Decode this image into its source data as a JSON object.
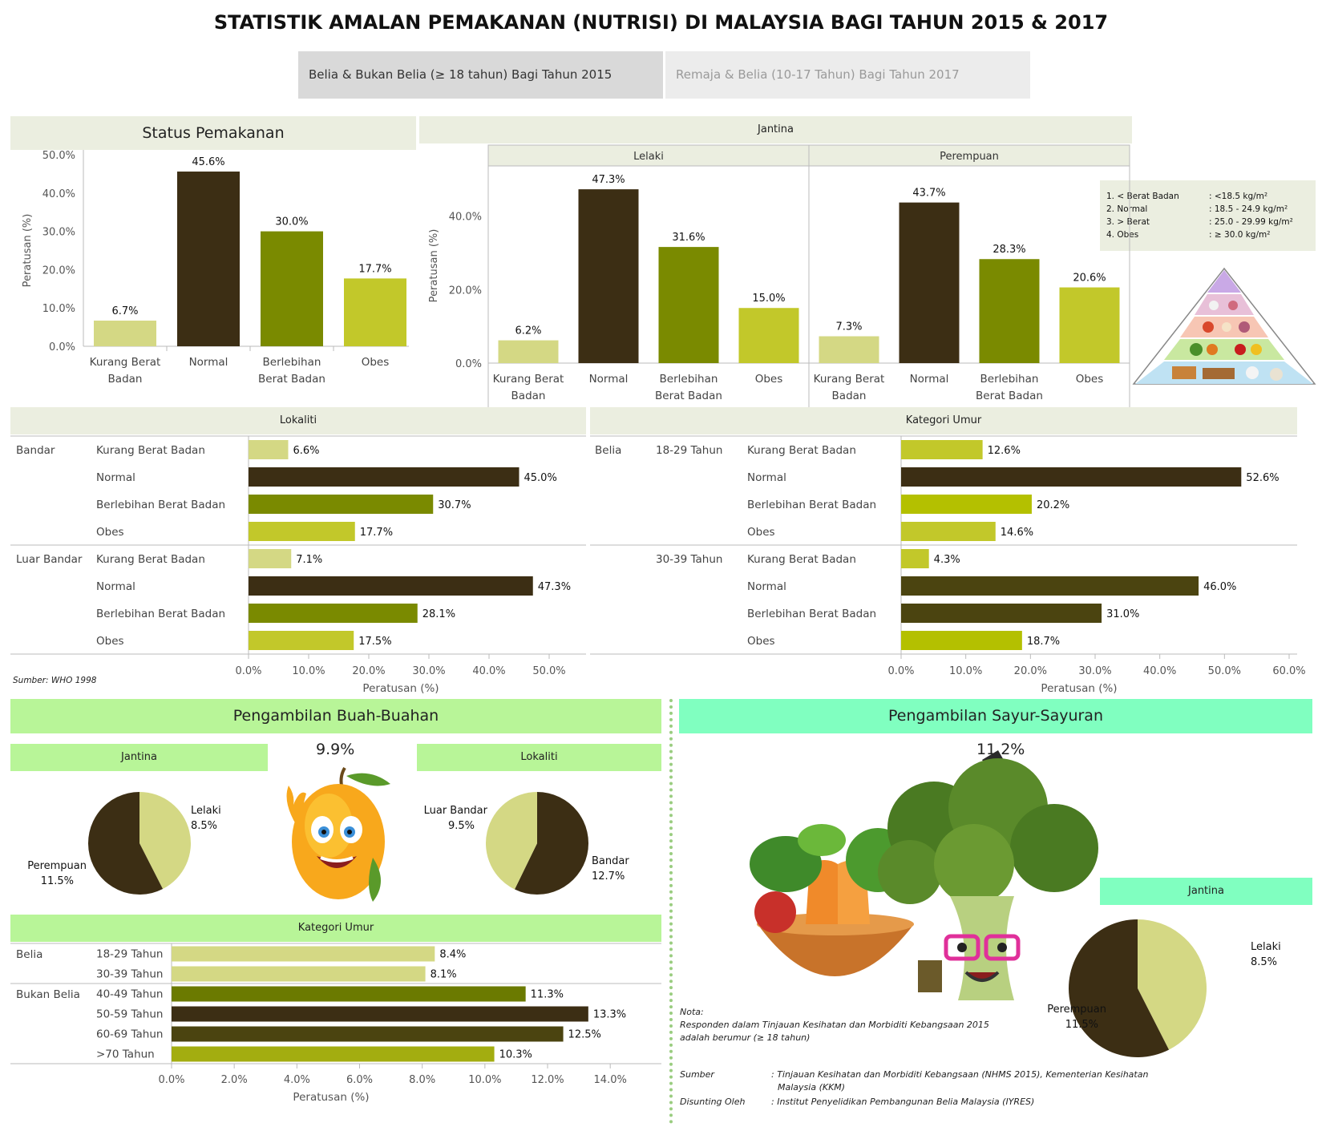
{
  "page": {
    "title": "STATISTIK AMALAN PEMAKANAN (NUTRISI) DI MALAYSIA BAGI TAHUN 2015 & 2017",
    "tabs": [
      {
        "label": "Belia & Bukan Belia (≥ 18 tahun) Bagi Tahun 2015",
        "active": true
      },
      {
        "label": "Remaja & Belia (10-17 Tahun) Bagi Tahun 2017",
        "active": false
      }
    ]
  },
  "colors": {
    "kurang": "#d4d884",
    "normal": "#3c2e14",
    "berlebihan": "#7a8a00",
    "obes": "#c2c82a",
    "header_bg": "#ebeee0",
    "fruit_bg": "#b8f598",
    "veg_bg": "#80ffc0"
  },
  "status": {
    "title": "Status Pemakanan",
    "ylabel": "Peratusan (%)"
  },
  "jantina": {
    "title": "Jantina",
    "ylabel": "Peratusan (%)"
  },
  "lokaliti": {
    "title": "Lokaliti",
    "xlabel": "Peratusan (%)"
  },
  "umur": {
    "title": "Kategori Umur",
    "xlabel": "Peratusan (%)"
  },
  "bmi_legend": [
    {
      "label": "1. < Berat Badan",
      "value": ": <18.5 kg/m²"
    },
    {
      "label": "2. Normal",
      "value": ": 18.5 - 24.9 kg/m²"
    },
    {
      "label": "3. > Berat",
      "value": ": 25.0 - 29.99 kg/m²"
    },
    {
      "label": "4. Obes",
      "value": ": ≥ 30.0 kg/m²"
    }
  ],
  "sumber_who": "Sumber: WHO 1998",
  "buah": {
    "title": "Pengambilan Buah-Buahan",
    "jantina_title": "Jantina",
    "lokaliti_title": "Lokaliti",
    "umur_title": "Kategori Umur",
    "overall": "9.9%",
    "xlabel": "Peratusan (%)"
  },
  "sayur": {
    "title": "Pengambilan Sayur-Sayuran",
    "jantina_title": "Jantina",
    "overall": "11.2%"
  },
  "notes": {
    "nota_label": "Nota:",
    "nota_text_1": "Responden dalam Tinjauan Kesihatan dan Morbiditi Kebangsaan 2015",
    "nota_text_2": "adalah berumur  (≥ 18 tahun)",
    "sumber_label": "Sumber",
    "sumber_text_1": ": Tinjauan Kesihatan dan Morbiditi Kebangsaan (NHMS 2015), Kementerian Kesihatan",
    "sumber_text_2": "Malaysia (KKM)",
    "disunting_label": "Disunting Oleh",
    "disunting_text": ": Institut Penyelidikan Pembangunan Belia Malaysia (IYRES)"
  },
  "chart_data": [
    {
      "id": "status",
      "type": "bar",
      "title": "Status Pemakanan",
      "ylabel": "Peratusan (%)",
      "ylim": [
        0,
        50
      ],
      "yticks": [
        "0.0%",
        "10.0%",
        "20.0%",
        "30.0%",
        "40.0%",
        "50.0%"
      ],
      "categories": [
        [
          "Kurang Berat",
          "Badan"
        ],
        [
          "Normal"
        ],
        [
          "Berlebihan",
          "Berat Badan"
        ],
        [
          "Obes"
        ]
      ],
      "values": [
        6.7,
        45.6,
        30.0,
        17.7
      ],
      "labels": [
        "6.7%",
        "45.6%",
        "30.0%",
        "17.7%"
      ]
    },
    {
      "id": "jantina",
      "type": "bar",
      "title": "Jantina",
      "ylabel": "Peratusan (%)",
      "ylim": [
        0,
        53
      ],
      "yticks": [
        "0.0%",
        "20.0%",
        "40.0%"
      ],
      "categories": [
        [
          "Kurang Berat",
          "Badan"
        ],
        [
          "Normal"
        ],
        [
          "Berlebihan",
          "Berat Badan"
        ],
        [
          "Obes"
        ]
      ],
      "panels": [
        {
          "name": "Lelaki",
          "values": [
            6.2,
            47.3,
            31.6,
            15.0
          ],
          "labels": [
            "6.2%",
            "47.3%",
            "31.6%",
            "15.0%"
          ]
        },
        {
          "name": "Perempuan",
          "values": [
            7.3,
            43.7,
            28.3,
            20.6
          ],
          "labels": [
            "7.3%",
            "43.7%",
            "28.3%",
            "20.6%"
          ]
        }
      ]
    },
    {
      "id": "lokaliti",
      "type": "bar",
      "orientation": "horizontal",
      "title": "Lokaliti",
      "xlabel": "Peratusan (%)",
      "xlim": [
        0,
        56
      ],
      "xticks": [
        "0.0%",
        "10.0%",
        "20.0%",
        "30.0%",
        "40.0%",
        "50.0%"
      ],
      "groups": [
        {
          "name": "Bandar",
          "rows": [
            {
              "label": "Kurang Berat Badan",
              "value": 6.6,
              "text": "6.6%"
            },
            {
              "label": "Normal",
              "value": 45.0,
              "text": "45.0%"
            },
            {
              "label": "Berlebihan Berat Badan",
              "value": 30.7,
              "text": "30.7%"
            },
            {
              "label": "Obes",
              "value": 17.7,
              "text": "17.7%"
            }
          ]
        },
        {
          "name": "Luar Bandar",
          "rows": [
            {
              "label": "Kurang Berat Badan",
              "value": 7.1,
              "text": "7.1%"
            },
            {
              "label": "Normal",
              "value": 47.3,
              "text": "47.3%"
            },
            {
              "label": "Berlebihan Berat Badan",
              "value": 28.1,
              "text": "28.1%"
            },
            {
              "label": "Obes",
              "value": 17.5,
              "text": "17.5%"
            }
          ]
        }
      ]
    },
    {
      "id": "umur",
      "type": "bar",
      "orientation": "horizontal",
      "title": "Kategori Umur",
      "xlabel": "Peratusan (%)",
      "xlim": [
        0,
        60
      ],
      "xticks": [
        "0.0%",
        "10.0%",
        "20.0%",
        "30.0%",
        "40.0%",
        "50.0%",
        "60.0%"
      ],
      "group": "Belia",
      "subgroups": [
        {
          "name": "18-29 Tahun",
          "rows": [
            {
              "label": "Kurang Berat Badan",
              "value": 12.6,
              "text": "12.6%"
            },
            {
              "label": "Normal",
              "value": 52.6,
              "text": "52.6%"
            },
            {
              "label": "Berlebihan Berat Badan",
              "value": 20.2,
              "text": "20.2%"
            },
            {
              "label": "Obes",
              "value": 14.6,
              "text": "14.6%"
            }
          ]
        },
        {
          "name": "30-39 Tahun",
          "rows": [
            {
              "label": "Kurang Berat Badan",
              "value": 4.3,
              "text": "4.3%"
            },
            {
              "label": "Normal",
              "value": 46.0,
              "text": "46.0%"
            },
            {
              "label": "Berlebihan Berat Badan",
              "value": 31.0,
              "text": "31.0%"
            },
            {
              "label": "Obes",
              "value": 18.7,
              "text": "18.7%"
            }
          ]
        }
      ]
    },
    {
      "id": "buah-jantina",
      "type": "pie",
      "title": "Jantina",
      "slices": [
        {
          "name": "Lelaki",
          "value": 8.5,
          "text": "8.5%",
          "color": "#d4d884"
        },
        {
          "name": "Perempuan",
          "value": 11.5,
          "text": "11.5%",
          "color": "#3c2e14"
        }
      ]
    },
    {
      "id": "buah-lokaliti",
      "type": "pie",
      "title": "Lokaliti",
      "slices": [
        {
          "name": "Bandar",
          "value": 12.7,
          "text": "12.7%",
          "color": "#3c2e14"
        },
        {
          "name": "Luar Bandar",
          "value": 9.5,
          "text": "9.5%",
          "color": "#d4d884"
        }
      ]
    },
    {
      "id": "buah-umur",
      "type": "bar",
      "orientation": "horizontal",
      "title": "Kategori Umur",
      "xlabel": "Peratusan (%)",
      "xlim": [
        0,
        15.3
      ],
      "xticks": [
        "0.0%",
        "2.0%",
        "4.0%",
        "6.0%",
        "8.0%",
        "10.0%",
        "12.0%",
        "14.0%"
      ],
      "groups": [
        {
          "name": "Belia",
          "rows": [
            {
              "label": "18-29 Tahun",
              "value": 8.4,
              "text": "8.4%",
              "color": "#d4d884"
            },
            {
              "label": "30-39 Tahun",
              "value": 8.1,
              "text": "8.1%",
              "color": "#d4d884"
            }
          ]
        },
        {
          "name": "Bukan Belia",
          "rows": [
            {
              "label": "40-49 Tahun",
              "value": 11.3,
              "text": "11.3%",
              "color": "#6b7a00"
            },
            {
              "label": "50-59 Tahun",
              "value": 13.3,
              "text": "13.3%",
              "color": "#3c2e14"
            },
            {
              "label": "60-69 Tahun",
              "value": 12.5,
              "text": "12.5%",
              "color": "#4b4410"
            },
            {
              "label": ">70 Tahun",
              "value": 10.3,
              "text": "10.3%",
              "color": "#a3ad10"
            }
          ]
        }
      ]
    },
    {
      "id": "sayur-jantina",
      "type": "pie",
      "title": "Jantina",
      "slices": [
        {
          "name": "Lelaki",
          "value": 8.5,
          "text": "8.5%",
          "color": "#d4d884"
        },
        {
          "name": "Perempuan",
          "value": 11.5,
          "text": "11.5%",
          "color": "#3c2e14"
        }
      ]
    }
  ]
}
